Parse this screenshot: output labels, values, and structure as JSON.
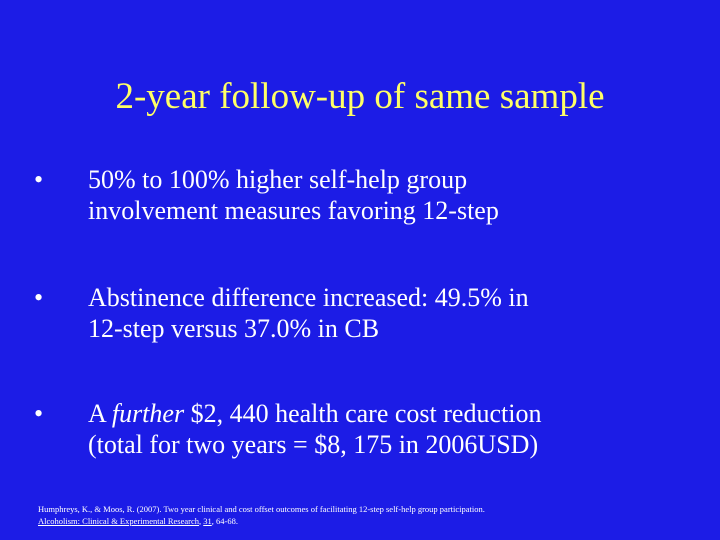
{
  "title": "2-year follow-up of same sample",
  "bullet_symbol": "•",
  "bullets": [
    {
      "line1": "50% to 100% higher self-help group",
      "line2": "involvement measures favoring 12-step"
    },
    {
      "line1": "Abstinence difference increased: 49.5% in",
      "line2": "12-step versus 37.0% in CB"
    },
    {
      "line1_a": "A ",
      "line1_emph": "further",
      "line1_b": " $2, 440 health care cost reduction",
      "line2": "(total for two years = $8, 175 in 2006USD)"
    }
  ],
  "citation": {
    "line1": "Humphreys, K., & Moos, R. (2007). Two year clinical and cost offset outcomes of facilitating 12-step self-help group participation.",
    "journal": "Alcoholism: Clinical & Experimental Research",
    "sep1": ", ",
    "volume": "31",
    "pages": ", 64-68."
  },
  "colors": {
    "background": "#1c1ce6",
    "title": "#ffff66",
    "body_text": "#ffffff"
  }
}
